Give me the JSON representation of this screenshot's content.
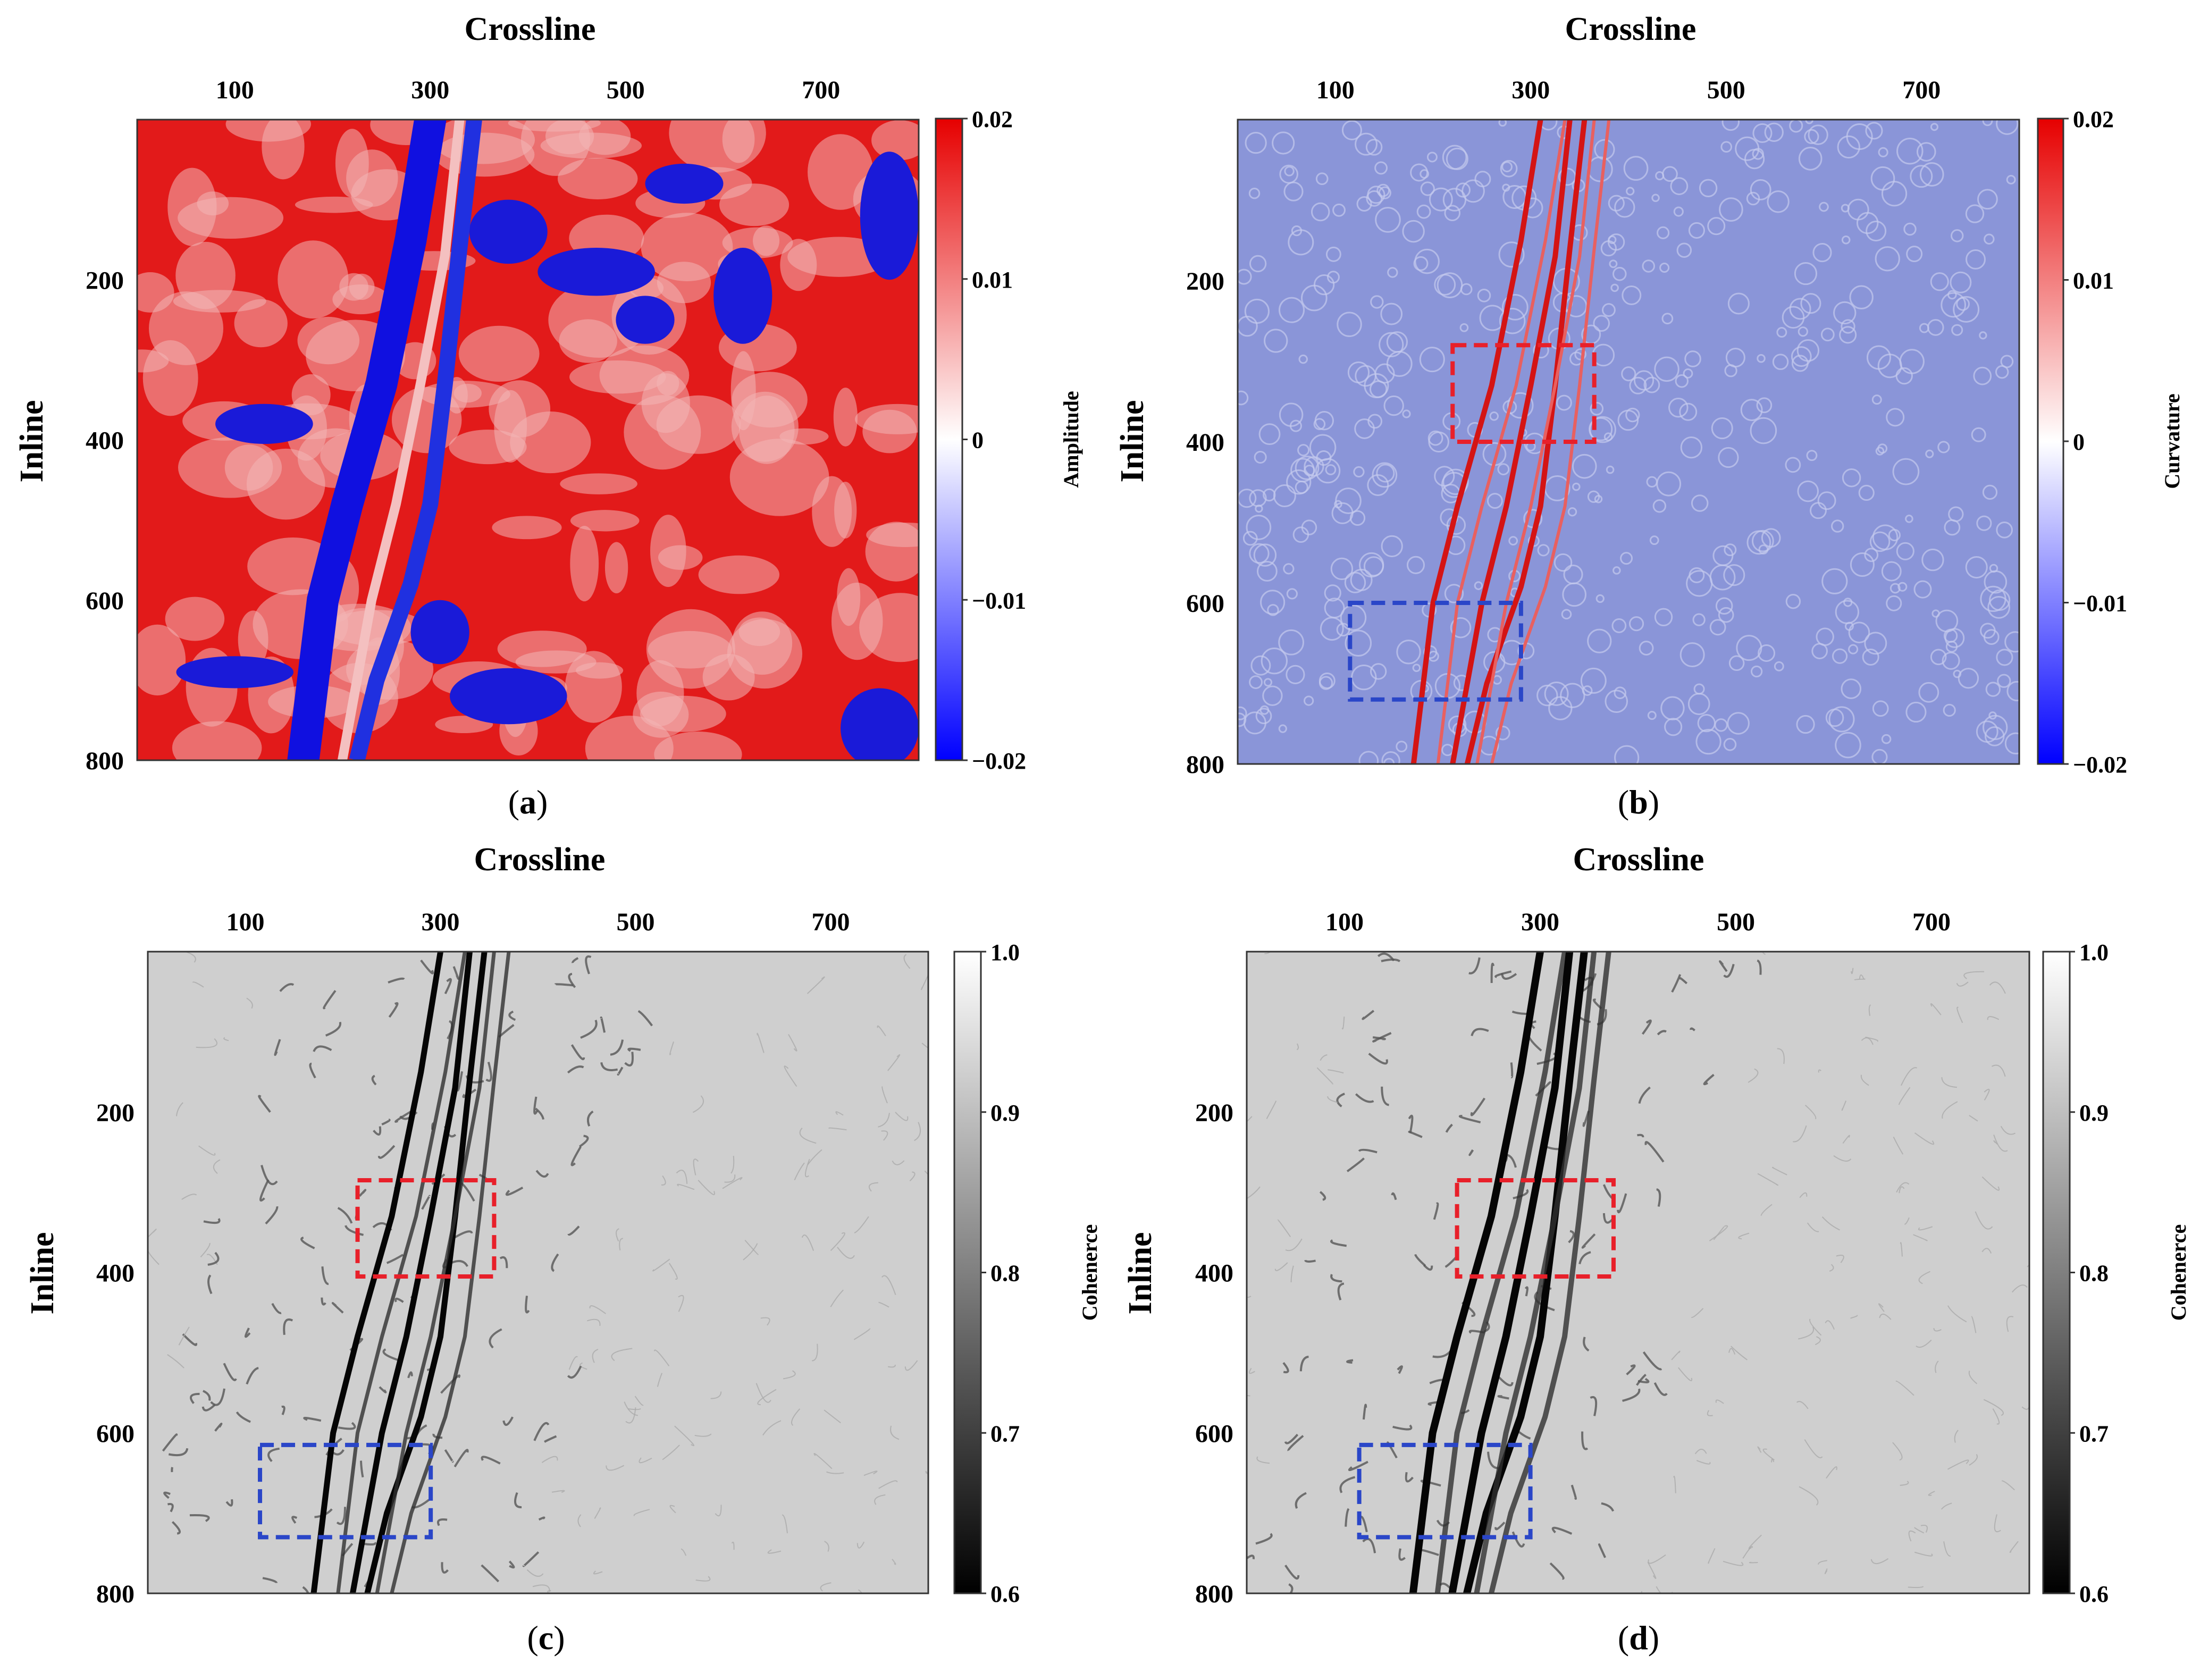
{
  "chart_data": [
    {
      "type": "heatmap",
      "panel": "(a)",
      "panel_letter": "a",
      "xlabel": "Crossline",
      "ylabel": "Inline",
      "xticks": [
        "100",
        "300",
        "500",
        "700"
      ],
      "xtick_values": [
        100,
        300,
        500,
        700
      ],
      "yticks": [
        "200",
        "400",
        "600",
        "800"
      ],
      "ytick_values": [
        200,
        400,
        600,
        800
      ],
      "xlim": [
        0,
        800
      ],
      "ylim": [
        0,
        800
      ],
      "colorbar": {
        "label": "Amplitude",
        "ticks": [
          "0.02",
          "0.01",
          "0",
          "−0.01",
          "−0.02"
        ],
        "range": [
          -0.02,
          0.02
        ],
        "colors": [
          "#0000ff",
          "#ffffff",
          "#e60000"
        ]
      },
      "boxes": []
    },
    {
      "type": "heatmap",
      "panel": "(b)",
      "panel_letter": "b",
      "xlabel": "Crossline",
      "ylabel": "Inline",
      "xticks": [
        "100",
        "300",
        "500",
        "700"
      ],
      "xtick_values": [
        100,
        300,
        500,
        700
      ],
      "yticks": [
        "200",
        "400",
        "600",
        "800"
      ],
      "ytick_values": [
        200,
        400,
        600,
        800
      ],
      "xlim": [
        0,
        800
      ],
      "ylim": [
        0,
        800
      ],
      "colorbar": {
        "label": "Curvature",
        "ticks": [
          "0.02",
          "0.01",
          "0",
          "−0.01",
          "−0.02"
        ],
        "range": [
          -0.02,
          0.02
        ],
        "colors": [
          "#0000ff",
          "#ffffff",
          "#e60000"
        ]
      },
      "boxes": [
        {
          "color": "#e8202a",
          "crossline": [
            220,
            365
          ],
          "inline": [
            280,
            400
          ]
        },
        {
          "color": "#2a46c8",
          "crossline": [
            115,
            290
          ],
          "inline": [
            600,
            720
          ]
        }
      ]
    },
    {
      "type": "heatmap",
      "panel": "(c)",
      "panel_letter": "c",
      "xlabel": "Crossline",
      "ylabel": "Inline",
      "xticks": [
        "100",
        "300",
        "500",
        "700"
      ],
      "xtick_values": [
        100,
        300,
        500,
        700
      ],
      "yticks": [
        "200",
        "400",
        "600",
        "800"
      ],
      "ytick_values": [
        200,
        400,
        600,
        800
      ],
      "xlim": [
        0,
        800
      ],
      "ylim": [
        0,
        800
      ],
      "colorbar": {
        "label": "Cohenerce",
        "ticks": [
          "1.0",
          "0.9",
          "0.8",
          "0.7",
          "0.6"
        ],
        "range": [
          0.6,
          1.0
        ],
        "colors": [
          "#000000",
          "#ffffff"
        ]
      },
      "boxes": [
        {
          "color": "#e8202a",
          "crossline": [
            215,
            355
          ],
          "inline": [
            285,
            405
          ]
        },
        {
          "color": "#2a46c8",
          "crossline": [
            115,
            290
          ],
          "inline": [
            615,
            730
          ]
        }
      ]
    },
    {
      "type": "heatmap",
      "panel": "(d)",
      "panel_letter": "d",
      "xlabel": "Crossline",
      "ylabel": "Inline",
      "xticks": [
        "100",
        "300",
        "500",
        "700"
      ],
      "xtick_values": [
        100,
        300,
        500,
        700
      ],
      "yticks": [
        "200",
        "400",
        "600",
        "800"
      ],
      "ytick_values": [
        200,
        400,
        600,
        800
      ],
      "xlim": [
        0,
        800
      ],
      "ylim": [
        0,
        800
      ],
      "colorbar": {
        "label": "Cohenerce",
        "ticks": [
          "1.0",
          "0.9",
          "0.8",
          "0.7",
          "0.6"
        ],
        "range": [
          0.6,
          1.0
        ],
        "colors": [
          "#000000",
          "#ffffff"
        ]
      },
      "boxes": [
        {
          "color": "#e8202a",
          "crossline": [
            215,
            375
          ],
          "inline": [
            285,
            405
          ]
        },
        {
          "color": "#2a46c8",
          "crossline": [
            115,
            290
          ],
          "inline": [
            615,
            730
          ]
        }
      ]
    }
  ]
}
